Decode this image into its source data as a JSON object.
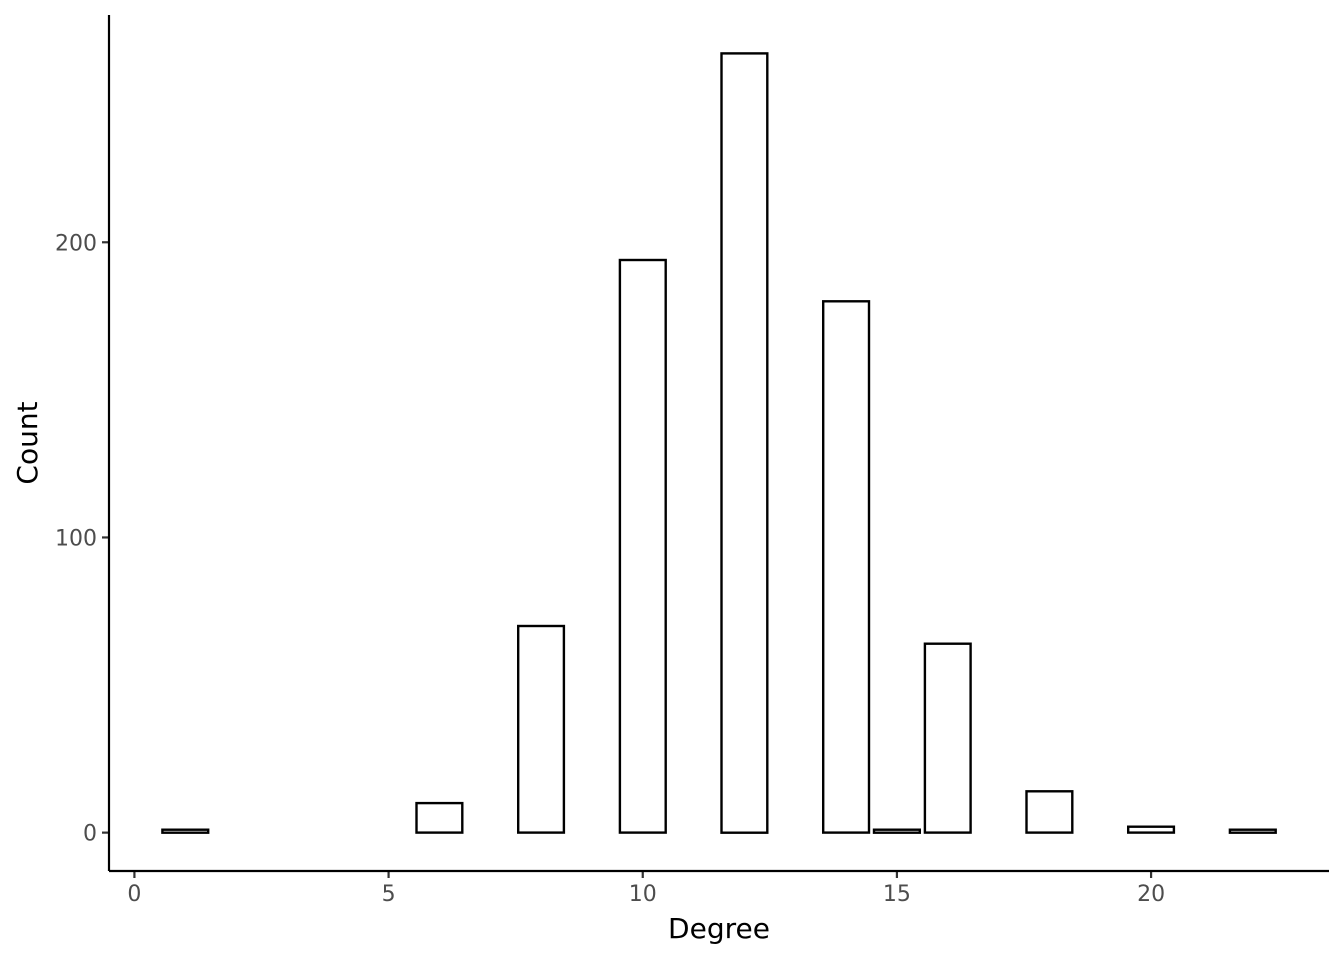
{
  "chart_data": {
    "type": "bar",
    "title": "",
    "xlabel": "Degree",
    "ylabel": "Count",
    "x": [
      1,
      6,
      8,
      10,
      12,
      14,
      15,
      16,
      18,
      20,
      22
    ],
    "values": [
      1,
      10,
      70,
      194,
      264,
      180,
      1,
      64,
      14,
      2,
      1
    ],
    "xlim": [
      -0.5,
      23.5
    ],
    "ylim": [
      -13,
      277
    ],
    "x_ticks": [
      0,
      5,
      10,
      15,
      20
    ],
    "y_ticks": [
      0,
      100,
      200
    ],
    "bar_width": 0.9,
    "bar_fill": "#ffffff",
    "bar_outline": "#000000",
    "grid": false,
    "legend": "none"
  }
}
